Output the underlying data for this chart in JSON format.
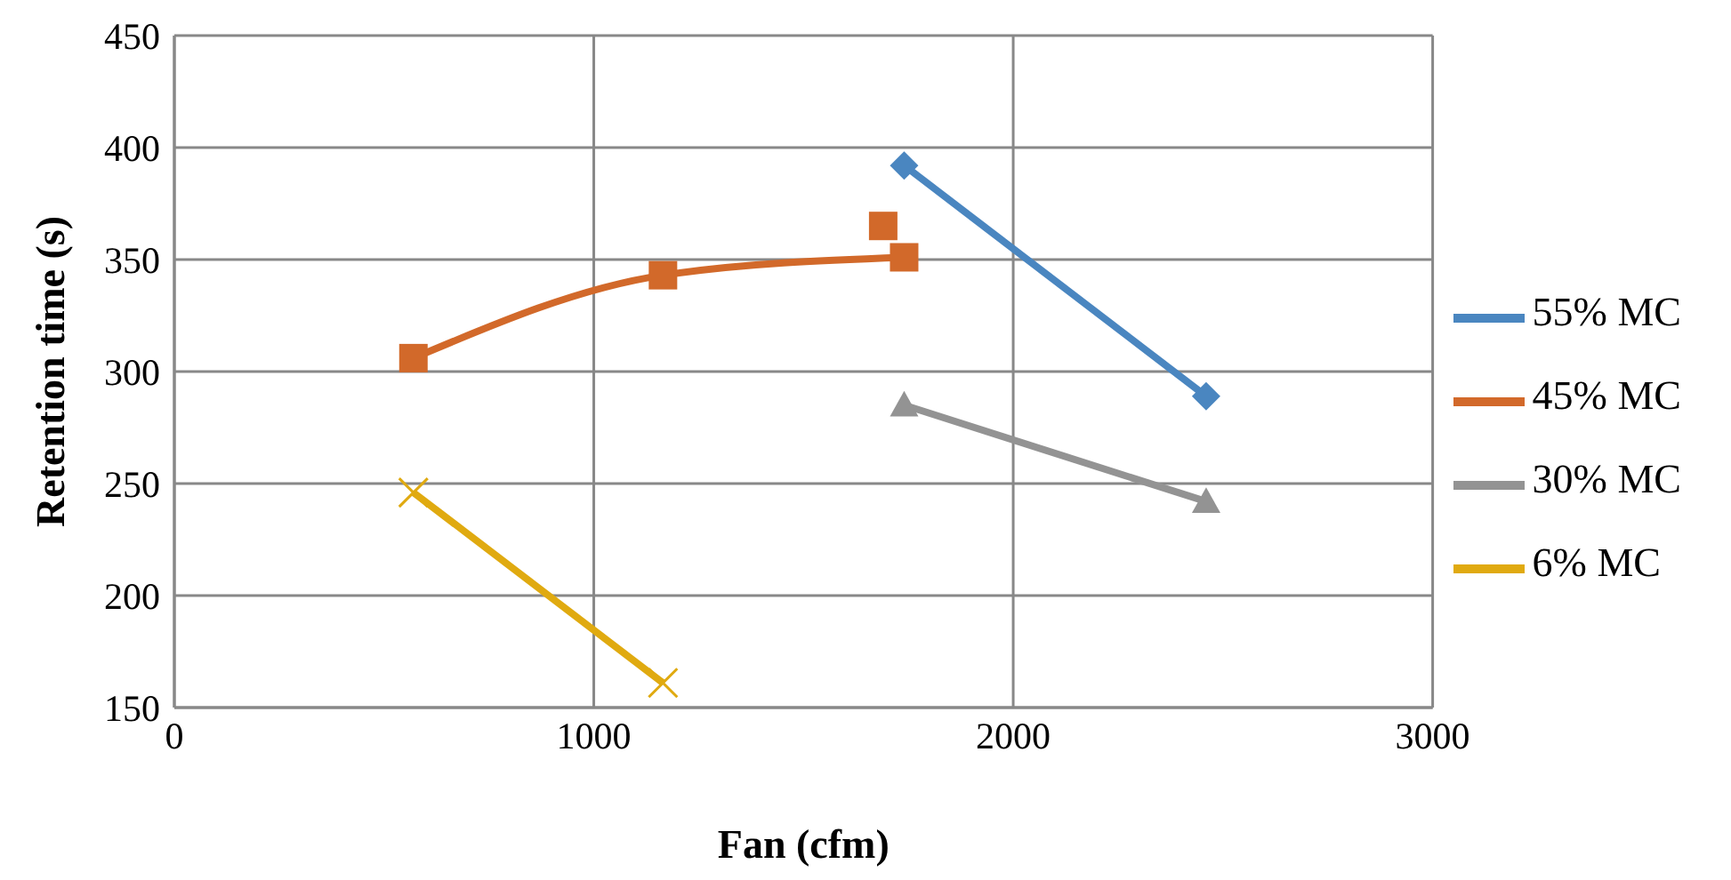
{
  "chart_data": {
    "type": "line",
    "xlabel": "Fan (cfm)",
    "ylabel": "Retention time (s)",
    "xlim": [
      0,
      3000
    ],
    "xticks": [
      0,
      1000,
      2000,
      3000
    ],
    "ylim": [
      150,
      450
    ],
    "yticks": [
      150,
      200,
      250,
      300,
      350,
      400,
      450
    ],
    "grid": true,
    "legend": "right",
    "series": [
      {
        "name": "55% MC",
        "color": "#4a86c0",
        "marker": "diamond",
        "x": [
          1740,
          2460
        ],
        "values": [
          392,
          289
        ]
      },
      {
        "name": "45% MC",
        "color": "#d2692a",
        "marker": "square",
        "x": [
          570,
          1165,
          1740
        ],
        "values": [
          306,
          343,
          351
        ]
      },
      {
        "name": "30% MC",
        "color": "#939393",
        "marker": "triangle",
        "x": [
          1740,
          2460
        ],
        "values": [
          285,
          242
        ]
      },
      {
        "name": "6% MC",
        "color": "#e0aa10",
        "marker": "cross",
        "x": [
          570,
          1165
        ],
        "values": [
          246,
          161
        ]
      },
      {
        "type": "scatter",
        "color": "#d2692a",
        "marker": "square",
        "x": [
          1690
        ],
        "values": [
          365
        ]
      }
    ]
  }
}
